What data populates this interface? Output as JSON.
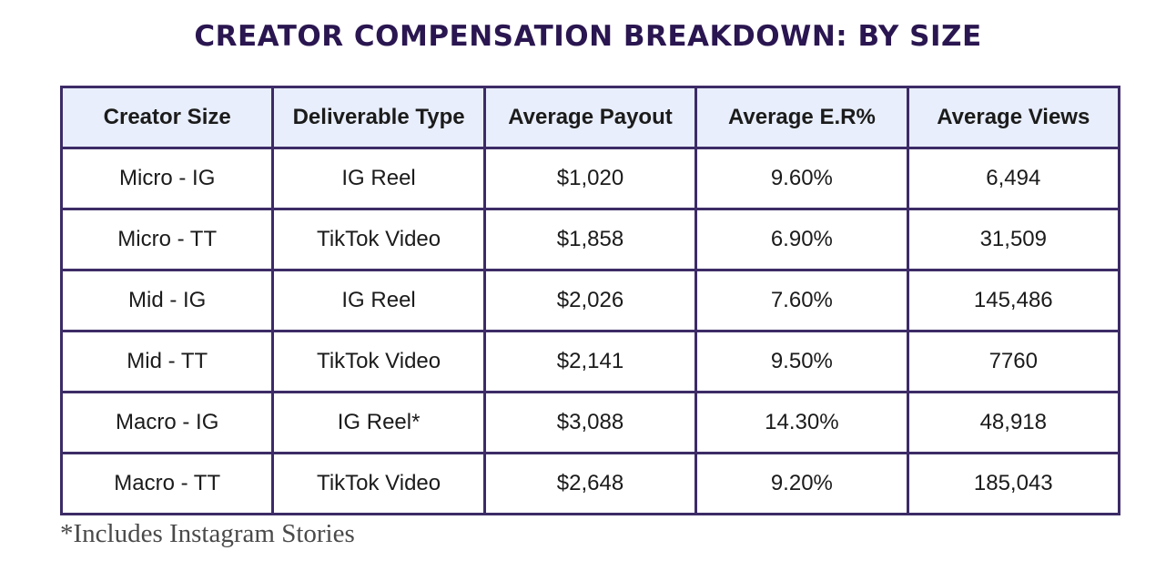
{
  "title": "CREATOR COMPENSATION BREAKDOWN: BY SIZE",
  "footnote": "*Includes Instagram Stories",
  "colors": {
    "title": "#2a1650",
    "border": "#3c2b66",
    "header_bg": "#e8eefc"
  },
  "chart_data": {
    "type": "table",
    "title": "CREATOR COMPENSATION BREAKDOWN: BY SIZE",
    "columns": [
      "Creator Size",
      "Deliverable Type",
      "Average Payout",
      "Average E.R%",
      "Average Views"
    ],
    "rows": [
      [
        "Micro - IG",
        "IG Reel",
        "$1,020",
        "9.60%",
        "6,494"
      ],
      [
        "Micro - TT",
        "TikTok Video",
        "$1,858",
        "6.90%",
        "31,509"
      ],
      [
        "Mid - IG",
        "IG Reel",
        "$2,026",
        "7.60%",
        "145,486"
      ],
      [
        "Mid - TT",
        "TikTok Video",
        "$2,141",
        "9.50%",
        "7760"
      ],
      [
        "Macro - IG",
        "IG Reel*",
        "$3,088",
        "14.30%",
        "48,918"
      ],
      [
        "Macro - TT",
        "TikTok Video",
        "$2,648",
        "9.20%",
        "185,043"
      ]
    ],
    "footnote": "*Includes Instagram Stories"
  }
}
